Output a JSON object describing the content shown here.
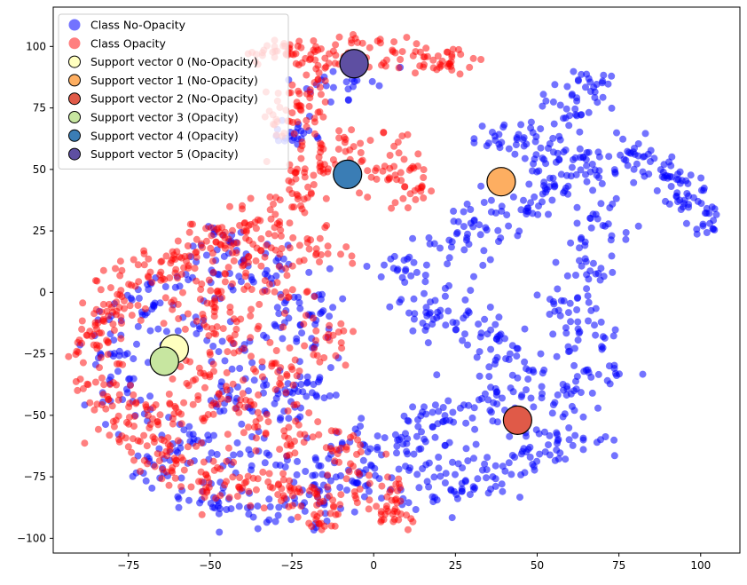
{
  "chart_data": {
    "type": "scatter",
    "title": "",
    "xlabel": "",
    "ylabel": "",
    "xlim": [
      -98,
      112
    ],
    "ylim": [
      -106,
      116
    ],
    "xticks": [
      -75,
      -50,
      -25,
      0,
      25,
      50,
      75,
      100
    ],
    "yticks": [
      -100,
      -75,
      -50,
      -25,
      0,
      25,
      50,
      75,
      100
    ],
    "grid": false,
    "legend_position": "upper-left",
    "series": [
      {
        "name": "Class No-Opacity",
        "color": "#0000ff",
        "alpha": 0.55,
        "marker_size": 8,
        "points": []
      },
      {
        "name": "Class Opacity",
        "color": "#ff0000",
        "alpha": 0.5,
        "marker_size": 8,
        "points": []
      }
    ],
    "support_vectors": [
      {
        "name": "Support vector 0 (No-Opacity)",
        "color": "#ffffbf",
        "x": -61,
        "y": -23
      },
      {
        "name": "Support vector 1 (No-Opacity)",
        "color": "#fdae61",
        "x": 39,
        "y": 45
      },
      {
        "name": "Support vector 2 (No-Opacity)",
        "color": "#e05a48",
        "x": 44,
        "y": -52
      },
      {
        "name": "Support vector 3 (Opacity)",
        "color": "#c7e6a0",
        "x": -64,
        "y": -28
      },
      {
        "name": "Support vector 4 (Opacity)",
        "color": "#3a7db5",
        "x": -8,
        "y": 48
      },
      {
        "name": "Support vector 5 (Opacity)",
        "color": "#5e4fa2",
        "x": -6,
        "y": 93
      }
    ]
  }
}
